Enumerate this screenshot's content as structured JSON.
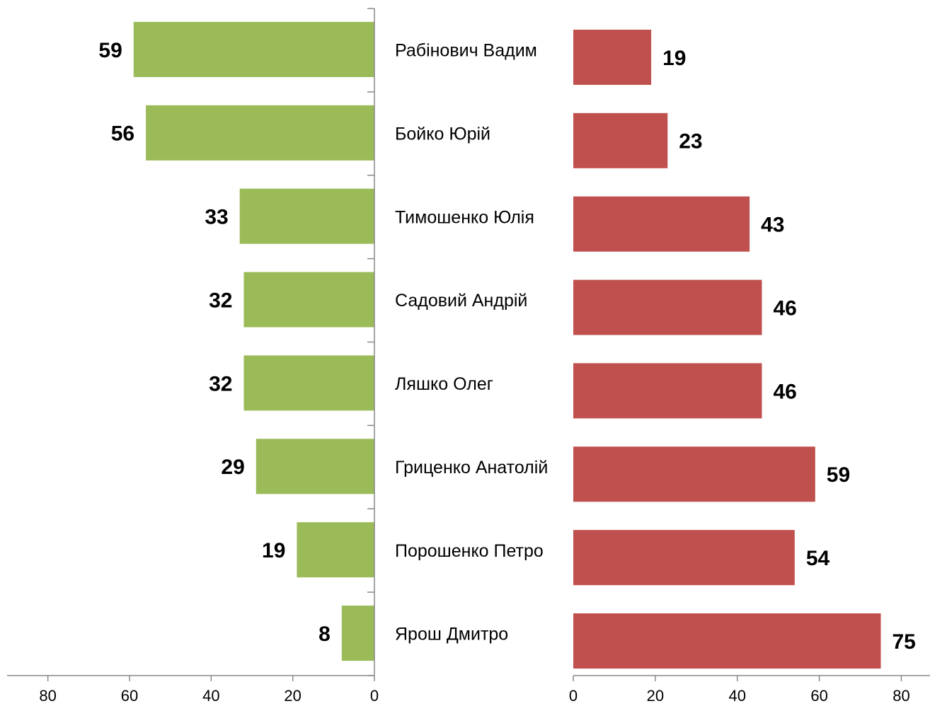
{
  "chart_data": [
    {
      "type": "bar",
      "orientation": "horizontal",
      "reversed": true,
      "color": "#9bbb59",
      "categories": [
        "Рабінович Вадим",
        "Бойко Юрій",
        "Тимошенко Юлія",
        "Садовий Андрій",
        "Ляшко Олег",
        "Гриценко Анатолій",
        "Порошенко Петро",
        "Ярош Дмитро"
      ],
      "values": [
        59,
        56,
        33,
        32,
        32,
        29,
        19,
        8
      ],
      "xlim": [
        0,
        90
      ],
      "xticks": [
        0,
        20,
        40,
        60,
        80
      ]
    },
    {
      "type": "bar",
      "orientation": "horizontal",
      "reversed": false,
      "color": "#c0504d",
      "values": [
        19,
        23,
        43,
        46,
        46,
        59,
        54,
        75
      ],
      "xlim": [
        0,
        87
      ],
      "xticks": [
        0,
        20,
        40,
        60,
        80
      ]
    }
  ]
}
